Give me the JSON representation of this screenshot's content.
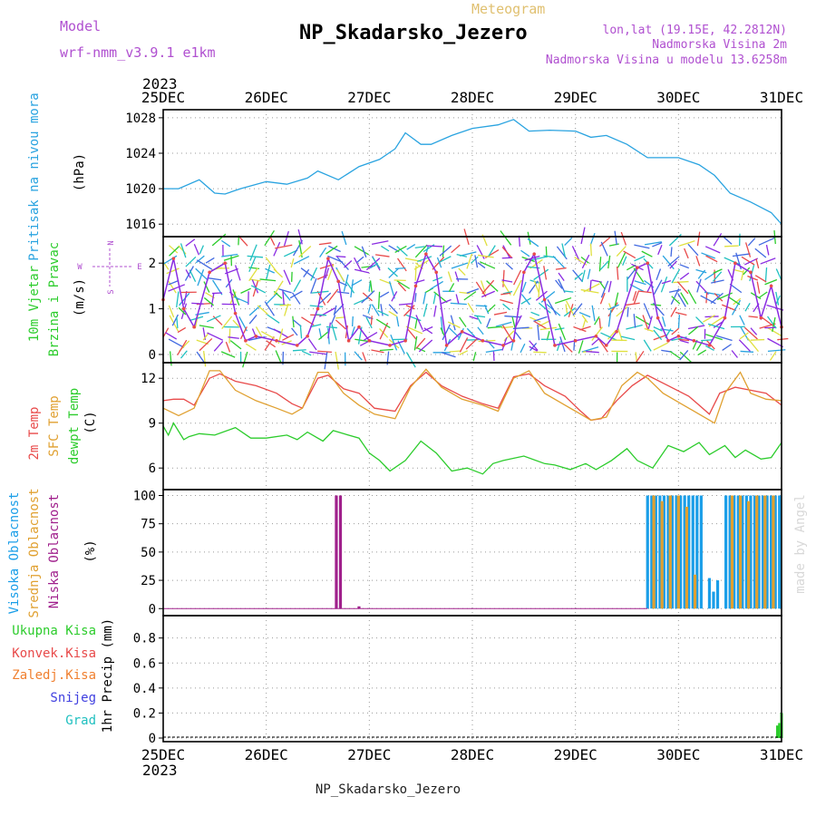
{
  "header": {
    "model_label": "Model",
    "model_value": "wrf-nmm_v3.9.1 e1km",
    "meteogram_label": "Meteogram",
    "title": "NP_Skadarsko_Jezero",
    "coords": "lon,lat (19.15E, 42.2812N)",
    "elevation": "Nadmorska Visina 2m",
    "model_elevation": "Nadmorska Visina u modelu 13.6258m",
    "year_top": "2023",
    "year_bottom": "2023",
    "footer": "NP_Skadarsko_Jezero",
    "watermark": "made by Angel"
  },
  "colors": {
    "pressure": "#29a3e0",
    "temp2m": "#e84a4a",
    "sfc_temp": "#e0a030",
    "dewpt": "#2ccc2c",
    "cloud_high": "#1a9ee8",
    "cloud_mid": "#e0a030",
    "cloud_low": "#a0208c",
    "purple_text": "#b050d0",
    "wind_purple": "#8a2be2",
    "precip_total": "#2ccc2c",
    "precip_conv": "#e84a4a",
    "precip_frozen": "#f08030",
    "precip_snow": "#4040e0",
    "precip_hail": "#20c0c0"
  },
  "time_axis": {
    "start_day": 25,
    "end_day": 31,
    "labels": [
      "25DEC",
      "26DEC",
      "27DEC",
      "28DEC",
      "29DEC",
      "30DEC",
      "31DEC"
    ]
  },
  "chart_data": [
    {
      "type": "line",
      "ylabel_1": "Pritisak na nivou mora",
      "ylabel_2": "(hPa)",
      "ylim": [
        1015,
        1028.5
      ],
      "yticks": [
        1016,
        1020,
        1024,
        1028
      ],
      "grid": true,
      "series": [
        {
          "color_key": "pressure",
          "x": [
            25.0,
            25.15,
            25.35,
            25.5,
            25.6,
            25.75,
            26.0,
            26.2,
            26.4,
            26.5,
            26.7,
            26.9,
            27.1,
            27.25,
            27.35,
            27.5,
            27.6,
            27.8,
            28.0,
            28.25,
            28.4,
            28.55,
            28.75,
            29.0,
            29.15,
            29.3,
            29.5,
            29.7,
            30.0,
            30.2,
            30.35,
            30.5,
            30.7,
            30.9,
            31.0
          ],
          "y": [
            1020.0,
            1020.0,
            1021.0,
            1019.5,
            1019.4,
            1020.0,
            1020.8,
            1020.5,
            1021.2,
            1022.0,
            1021.0,
            1022.5,
            1023.3,
            1024.5,
            1026.3,
            1025.0,
            1025.0,
            1026.0,
            1026.8,
            1027.2,
            1027.8,
            1026.5,
            1026.6,
            1026.5,
            1025.8,
            1026.0,
            1025.0,
            1023.5,
            1023.5,
            1022.7,
            1021.5,
            1019.5,
            1018.5,
            1017.3,
            1016.0
          ]
        }
      ]
    },
    {
      "type": "line",
      "ylabel_1": "10m Vjetar",
      "ylabel_2": "Brzina i Pravac",
      "ylabel_3": "(m/s)",
      "compass": [
        "N",
        "W",
        "E",
        "S"
      ],
      "ylim": [
        -0.1,
        2.5
      ],
      "yticks": [
        0,
        1,
        2
      ],
      "grid": true,
      "series": [
        {
          "color_key": "wind_purple",
          "x": [
            25.0,
            25.1,
            25.2,
            25.3,
            25.45,
            25.6,
            25.7,
            25.8,
            25.9,
            26.1,
            26.3,
            26.4,
            26.5,
            26.6,
            26.7,
            26.8,
            26.9,
            27.0,
            27.2,
            27.35,
            27.45,
            27.55,
            27.65,
            27.75,
            27.9,
            28.1,
            28.3,
            28.4,
            28.5,
            28.6,
            28.7,
            28.8,
            29.0,
            29.2,
            29.3,
            29.4,
            29.6,
            29.7,
            29.8,
            29.9,
            30.0,
            30.15,
            30.3,
            30.45,
            30.55,
            30.7,
            30.8,
            30.9,
            31.0
          ],
          "y": [
            1.2,
            2.1,
            1.0,
            0.6,
            1.8,
            2.0,
            0.9,
            0.3,
            0.4,
            0.3,
            0.2,
            0.4,
            1.0,
            2.1,
            1.6,
            0.3,
            0.6,
            0.3,
            0.2,
            0.3,
            1.5,
            2.2,
            1.8,
            0.2,
            0.5,
            0.3,
            0.2,
            0.3,
            1.8,
            2.2,
            1.2,
            0.2,
            0.3,
            0.4,
            0.2,
            0.5,
            1.9,
            2.0,
            0.8,
            0.3,
            0.4,
            0.3,
            0.2,
            0.8,
            2.0,
            1.8,
            0.8,
            1.5,
            0.6
          ]
        }
      ]
    },
    {
      "type": "line",
      "ylabel_1": "2m Temp",
      "ylabel_2": "SFC Temp",
      "ylabel_3": "dewpt Temp",
      "ylabel_4": "(C)",
      "ylim": [
        4.8,
        12.8
      ],
      "yticks": [
        6,
        9,
        12
      ],
      "grid": true,
      "series": [
        {
          "color_key": "temp2m",
          "x": [
            25.0,
            25.1,
            25.2,
            25.3,
            25.45,
            25.55,
            25.7,
            25.9,
            26.1,
            26.25,
            26.35,
            26.5,
            26.6,
            26.75,
            26.9,
            27.05,
            27.25,
            27.4,
            27.55,
            27.7,
            27.9,
            28.1,
            28.25,
            28.4,
            28.55,
            28.7,
            28.9,
            29.05,
            29.15,
            29.25,
            29.4,
            29.55,
            29.7,
            29.9,
            30.1,
            30.2,
            30.3,
            30.4,
            30.55,
            30.7,
            30.85,
            31.0
          ],
          "y": [
            10.5,
            10.6,
            10.6,
            10.2,
            12.0,
            12.3,
            11.8,
            11.5,
            11.0,
            10.3,
            10.0,
            12.0,
            12.2,
            11.3,
            11.0,
            10.0,
            9.8,
            11.5,
            12.4,
            11.5,
            10.8,
            10.3,
            10.0,
            12.1,
            12.3,
            11.5,
            10.8,
            9.8,
            9.2,
            9.3,
            10.5,
            11.5,
            12.2,
            11.5,
            10.8,
            10.2,
            9.6,
            11.0,
            11.4,
            11.2,
            11.0,
            10.2
          ]
        },
        {
          "color_key": "sfc_temp",
          "x": [
            25.0,
            25.15,
            25.3,
            25.45,
            25.55,
            25.7,
            25.9,
            26.1,
            26.25,
            26.35,
            26.5,
            26.6,
            26.75,
            26.9,
            27.05,
            27.25,
            27.4,
            27.55,
            27.7,
            27.9,
            28.1,
            28.25,
            28.4,
            28.55,
            28.7,
            28.9,
            29.0,
            29.15,
            29.3,
            29.45,
            29.6,
            29.7,
            29.85,
            30.05,
            30.2,
            30.35,
            30.45,
            30.6,
            30.7,
            30.85,
            31.0
          ],
          "y": [
            10.0,
            9.5,
            10.0,
            12.5,
            12.5,
            11.2,
            10.5,
            10.0,
            9.6,
            10.0,
            12.4,
            12.4,
            11.0,
            10.2,
            9.6,
            9.3,
            11.4,
            12.6,
            11.4,
            10.6,
            10.2,
            9.8,
            12.0,
            12.5,
            11.0,
            10.2,
            9.8,
            9.2,
            9.4,
            11.5,
            12.4,
            12.0,
            11.0,
            10.2,
            9.6,
            9.0,
            11.0,
            12.4,
            11.0,
            10.6,
            10.5
          ]
        },
        {
          "color_key": "dewpt",
          "x": [
            25.0,
            25.05,
            25.1,
            25.2,
            25.25,
            25.35,
            25.5,
            25.7,
            25.85,
            26.0,
            26.2,
            26.3,
            26.4,
            26.55,
            26.65,
            26.75,
            26.9,
            27.0,
            27.1,
            27.2,
            27.35,
            27.5,
            27.65,
            27.8,
            27.95,
            28.1,
            28.2,
            28.3,
            28.5,
            28.7,
            28.8,
            28.95,
            29.1,
            29.2,
            29.35,
            29.5,
            29.6,
            29.75,
            29.9,
            30.05,
            30.2,
            30.3,
            30.45,
            30.55,
            30.65,
            30.8,
            30.9,
            31.0
          ],
          "y": [
            8.8,
            8.2,
            9.0,
            7.9,
            8.1,
            8.3,
            8.2,
            8.7,
            8.0,
            8.0,
            8.2,
            7.9,
            8.4,
            7.8,
            8.5,
            8.3,
            8.0,
            7.0,
            6.5,
            5.8,
            6.5,
            7.8,
            7.0,
            5.8,
            6.0,
            5.6,
            6.3,
            6.5,
            6.8,
            6.3,
            6.2,
            5.9,
            6.3,
            5.9,
            6.5,
            7.3,
            6.5,
            6.0,
            7.5,
            7.1,
            7.7,
            6.9,
            7.5,
            6.7,
            7.2,
            6.6,
            6.7,
            7.7
          ]
        }
      ]
    },
    {
      "type": "bar",
      "ylabel_1": "Visoka Oblacnost",
      "ylabel_2": "Srednja Oblacnost",
      "ylabel_3": "Niska Oblacnost",
      "ylabel_4": "(%)",
      "ylim": [
        -3,
        102
      ],
      "yticks": [
        0,
        25,
        50,
        75,
        100
      ],
      "grid": true,
      "series": [
        {
          "name": "Niska Oblacnost",
          "color_key": "cloud_low",
          "x": [
            26.68,
            26.72,
            26.9
          ],
          "values": [
            100,
            100,
            2
          ]
        },
        {
          "name": "Visoka Oblacnost",
          "color_key": "cloud_high",
          "x": [
            29.7,
            29.74,
            29.78,
            29.82,
            29.86,
            29.9,
            29.94,
            29.98,
            30.02,
            30.06,
            30.1,
            30.14,
            30.18,
            30.22,
            30.3,
            30.34,
            30.38,
            30.46,
            30.5,
            30.54,
            30.58,
            30.62,
            30.66,
            30.7,
            30.74,
            30.78,
            30.82,
            30.86,
            30.9,
            30.94,
            30.98
          ],
          "values": [
            100,
            100,
            100,
            100,
            100,
            100,
            100,
            100,
            100,
            100,
            100,
            100,
            100,
            100,
            27,
            15,
            25,
            100,
            100,
            100,
            100,
            100,
            100,
            100,
            100,
            100,
            100,
            100,
            100,
            100,
            100
          ]
        },
        {
          "name": "Srednja Oblacnost",
          "color_key": "cloud_mid",
          "x": [
            29.76,
            29.84,
            29.92,
            30.0,
            30.08,
            30.16,
            30.52,
            30.6,
            30.68,
            30.76,
            30.84,
            30.92
          ],
          "values": [
            100,
            95,
            100,
            100,
            90,
            30,
            100,
            100,
            95,
            100,
            100,
            100
          ]
        }
      ]
    },
    {
      "type": "bar",
      "ylabel_1": "1hr Precip (mm)",
      "legend": [
        "Ukupna Kisa",
        "Konvek.Kisa",
        "Zaledj.Kisa",
        "Snijeg",
        "Grad"
      ],
      "ylim": [
        0,
        0.95
      ],
      "yticks": [
        0,
        0.2,
        0.4,
        0.6,
        0.8
      ],
      "grid": true,
      "series": [
        {
          "name": "Ukupna Kisa",
          "color_key": "precip_total",
          "x": [
            30.96,
            30.98,
            31.0
          ],
          "values": [
            0.1,
            0.12,
            0.2
          ]
        }
      ]
    }
  ]
}
